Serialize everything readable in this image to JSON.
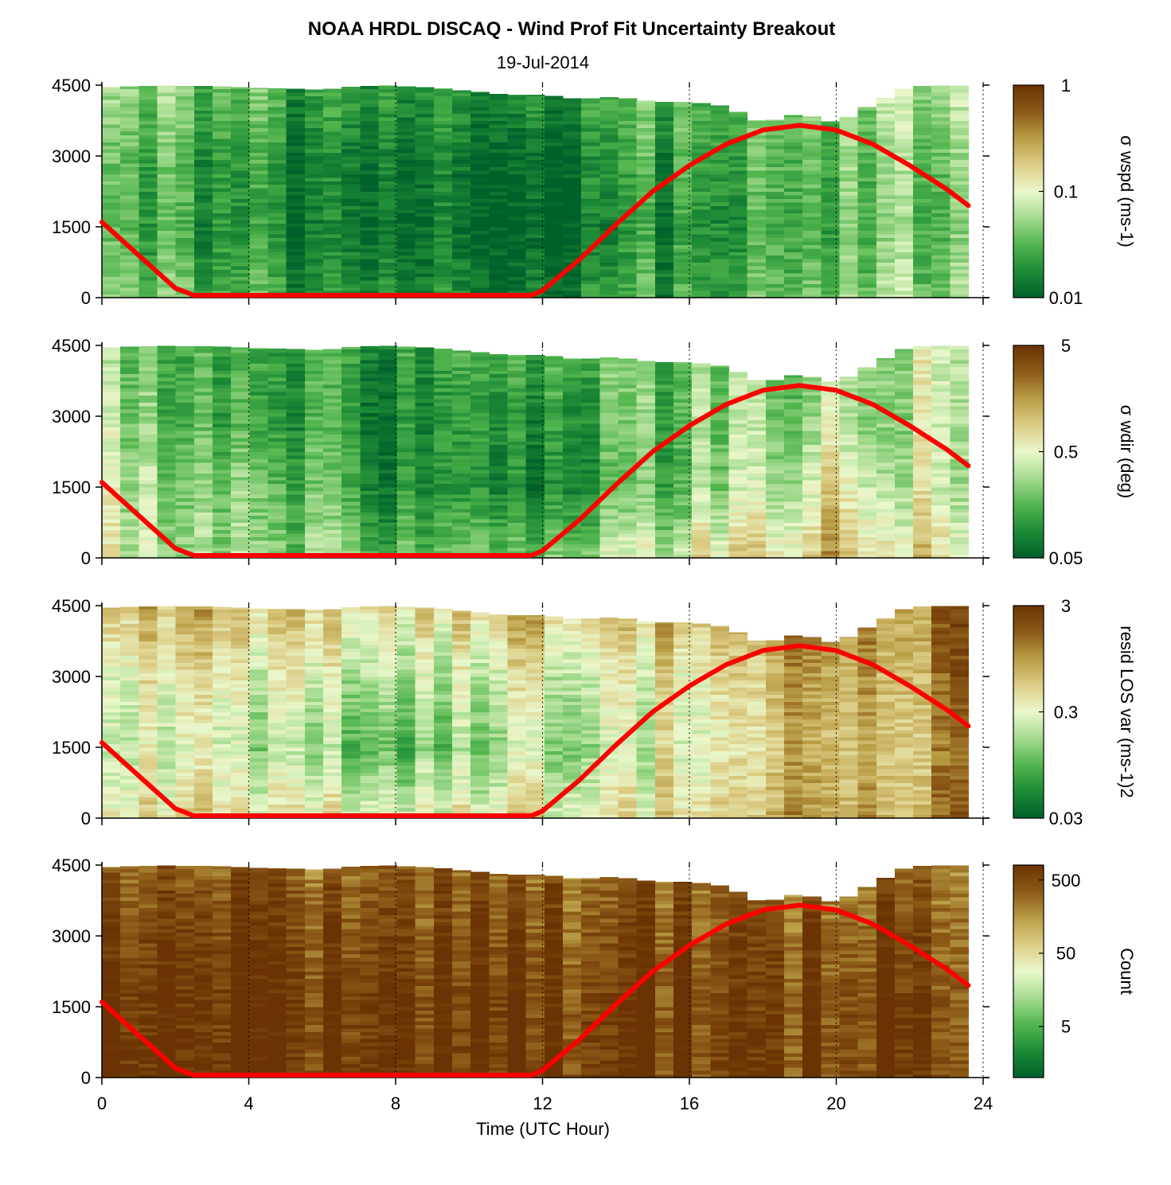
{
  "figure": {
    "title": "NOAA HRDL DISCAQ - Wind Prof Fit Uncertainty Breakout",
    "subtitle": "19-Jul-2014",
    "xlabel": "Time (UTC Hour)"
  },
  "colormap": [
    "#00602a",
    "#1c8a36",
    "#52b54e",
    "#a4db8f",
    "#eaf7cb",
    "#dccd86",
    "#b99d45",
    "#8c5a17",
    "#6b3303"
  ],
  "chart_data": [
    {
      "type": "heatmap",
      "panel": "wspd",
      "ylabel": "",
      "colorbar_label": "σ wspd (ms-1)",
      "colorbar_ticks": [
        "1",
        "0.1",
        "0.01"
      ],
      "colorbar_range": [
        0.01,
        1
      ],
      "colorbar_scale": "log",
      "xlim": [
        0,
        24
      ],
      "ylim": [
        0,
        4500
      ],
      "x_ticks": [
        "0",
        "4",
        "8",
        "12",
        "16",
        "20",
        "24"
      ],
      "y_ticks": [
        "0",
        "1500",
        "3000",
        "4500"
      ],
      "grid": "dotted vertical at 4, 8, 12, 16, 20, 24",
      "data_extent_hours": [
        0,
        23.6
      ],
      "top_profile": {
        "x": [
          0,
          1,
          2,
          3,
          4,
          5,
          6,
          7,
          8,
          9,
          10,
          11,
          12,
          13,
          14,
          15,
          16,
          17,
          18,
          19,
          20,
          21,
          22,
          23,
          23.6
        ],
        "height": [
          4450,
          4480,
          4490,
          4480,
          4450,
          4430,
          4400,
          4480,
          4490,
          4450,
          4380,
          4300,
          4300,
          4200,
          4260,
          4150,
          4150,
          4050,
          3700,
          3900,
          3700,
          4100,
          4480,
          4490,
          4500
        ]
      },
      "sun_elevation_curve": {
        "x": [
          0,
          1,
          2,
          2.5,
          3,
          4,
          5,
          6,
          7,
          8,
          9,
          10,
          11,
          11.7,
          12,
          13,
          14,
          15,
          16,
          17,
          18,
          19,
          20,
          21,
          22,
          23,
          23.6
        ],
        "height": [
          1600,
          900,
          200,
          50,
          50,
          50,
          50,
          50,
          50,
          50,
          50,
          50,
          50,
          50,
          150,
          800,
          1550,
          2250,
          2800,
          3250,
          3550,
          3650,
          3550,
          3250,
          2800,
          2300,
          1950
        ]
      },
      "intensity": {
        "x": [
          0,
          4,
          8,
          12,
          16,
          20,
          23.6
        ],
        "y": [
          0,
          1500,
          3000,
          4500
        ],
        "z": [
          [
            0.35,
            0.2,
            0.12,
            0.12,
            0.2,
            0.3,
            0.38
          ],
          [
            0.3,
            0.12,
            0.05,
            0.05,
            0.15,
            0.25,
            0.32
          ],
          [
            0.32,
            0.15,
            0.06,
            0.08,
            0.22,
            0.28,
            0.35
          ],
          [
            0.4,
            0.25,
            0.15,
            0.2,
            0.25,
            0.35,
            0.45
          ]
        ]
      }
    },
    {
      "type": "heatmap",
      "panel": "wdir",
      "ylabel": "",
      "colorbar_label": "σ wdir (deg)",
      "colorbar_ticks": [
        "5",
        "0.5",
        "0.05"
      ],
      "colorbar_range": [
        0.05,
        5
      ],
      "colorbar_scale": "log",
      "xlim": [
        0,
        24
      ],
      "ylim": [
        0,
        4500
      ],
      "x_ticks": [
        "0",
        "4",
        "8",
        "12",
        "16",
        "20",
        "24"
      ],
      "y_ticks": [
        "0",
        "1500",
        "3000",
        "4500"
      ],
      "grid": "dotted vertical at 4, 8, 12, 16, 20, 24",
      "data_extent_hours": [
        0,
        23.6
      ],
      "top_profile": {
        "x": [
          0,
          1,
          2,
          3,
          4,
          5,
          6,
          7,
          8,
          9,
          10,
          11,
          12,
          13,
          14,
          15,
          16,
          17,
          18,
          19,
          20,
          21,
          22,
          23,
          23.6
        ],
        "height": [
          4450,
          4480,
          4490,
          4480,
          4450,
          4430,
          4400,
          4480,
          4490,
          4450,
          4380,
          4300,
          4300,
          4200,
          4260,
          4150,
          4150,
          4050,
          3700,
          3900,
          3700,
          4100,
          4480,
          4490,
          4500
        ]
      },
      "sun_elevation_curve": {
        "x": [
          0,
          1,
          2,
          2.5,
          3,
          4,
          5,
          6,
          7,
          8,
          9,
          10,
          11,
          11.7,
          12,
          13,
          14,
          15,
          16,
          17,
          18,
          19,
          20,
          21,
          22,
          23,
          23.6
        ],
        "height": [
          1600,
          900,
          200,
          50,
          50,
          50,
          50,
          50,
          50,
          50,
          50,
          50,
          50,
          50,
          150,
          800,
          1550,
          2250,
          2800,
          3250,
          3550,
          3650,
          3550,
          3250,
          2800,
          2300,
          1950
        ]
      },
      "intensity": {
        "x": [
          0,
          4,
          8,
          12,
          16,
          20,
          23.6
        ],
        "y": [
          0,
          1500,
          3000,
          4500
        ],
        "z": [
          [
            0.5,
            0.35,
            0.25,
            0.3,
            0.5,
            0.7,
            0.55
          ],
          [
            0.45,
            0.3,
            0.12,
            0.1,
            0.3,
            0.55,
            0.4
          ],
          [
            0.4,
            0.18,
            0.1,
            0.15,
            0.3,
            0.4,
            0.45
          ],
          [
            0.35,
            0.2,
            0.15,
            0.25,
            0.3,
            0.4,
            0.45
          ]
        ]
      }
    },
    {
      "type": "heatmap",
      "panel": "resid",
      "ylabel": "",
      "colorbar_label": "resid LOS var (ms-1)2",
      "colorbar_ticks": [
        "3",
        "0.3",
        "0.03"
      ],
      "colorbar_range": [
        0.03,
        3
      ],
      "colorbar_scale": "log",
      "xlim": [
        0,
        24
      ],
      "ylim": [
        0,
        4500
      ],
      "x_ticks": [
        "0",
        "4",
        "8",
        "12",
        "16",
        "20",
        "24"
      ],
      "y_ticks": [
        "0",
        "1500",
        "3000",
        "4500"
      ],
      "grid": "dotted vertical at 4, 8, 12, 16, 20, 24",
      "data_extent_hours": [
        0,
        23.6
      ],
      "top_profile": {
        "x": [
          0,
          1,
          2,
          3,
          4,
          5,
          6,
          7,
          8,
          9,
          10,
          11,
          12,
          13,
          14,
          15,
          16,
          17,
          18,
          19,
          20,
          21,
          22,
          23,
          23.6
        ],
        "height": [
          4450,
          4480,
          4490,
          4480,
          4450,
          4430,
          4400,
          4480,
          4490,
          4450,
          4380,
          4300,
          4300,
          4200,
          4260,
          4150,
          4150,
          4050,
          3700,
          3900,
          3700,
          4100,
          4480,
          4490,
          4500
        ]
      },
      "sun_elevation_curve": {
        "x": [
          0,
          1,
          2,
          2.5,
          3,
          4,
          5,
          6,
          7,
          8,
          9,
          10,
          11,
          11.7,
          12,
          13,
          14,
          15,
          16,
          17,
          18,
          19,
          20,
          21,
          22,
          23,
          23.6
        ],
        "height": [
          1600,
          900,
          200,
          50,
          50,
          50,
          50,
          50,
          50,
          50,
          50,
          50,
          50,
          50,
          150,
          800,
          1550,
          2250,
          2800,
          3250,
          3550,
          3650,
          3550,
          3250,
          2800,
          2300,
          1950
        ]
      },
      "intensity": {
        "x": [
          0,
          4,
          8,
          12,
          16,
          20,
          23.6
        ],
        "y": [
          0,
          1500,
          3000,
          4500
        ],
        "z": [
          [
            0.65,
            0.55,
            0.55,
            0.55,
            0.6,
            0.75,
            0.8
          ],
          [
            0.55,
            0.4,
            0.3,
            0.4,
            0.5,
            0.7,
            0.75
          ],
          [
            0.6,
            0.5,
            0.45,
            0.5,
            0.55,
            0.75,
            0.8
          ],
          [
            0.75,
            0.65,
            0.6,
            0.7,
            0.7,
            0.8,
            0.85
          ]
        ]
      }
    },
    {
      "type": "heatmap",
      "panel": "count",
      "ylabel": "",
      "colorbar_label": "Count",
      "colorbar_ticks": [
        "500",
        "50",
        "5"
      ],
      "colorbar_range": [
        1,
        800
      ],
      "colorbar_scale": "log",
      "xlim": [
        0,
        24
      ],
      "ylim": [
        0,
        4500
      ],
      "x_ticks": [
        "0",
        "4",
        "8",
        "12",
        "16",
        "20",
        "24"
      ],
      "y_ticks": [
        "0",
        "1500",
        "3000",
        "4500"
      ],
      "grid": "dotted vertical at 4, 8, 12, 16, 20, 24",
      "data_extent_hours": [
        0,
        23.6
      ],
      "top_profile": {
        "x": [
          0,
          1,
          2,
          3,
          4,
          5,
          6,
          7,
          8,
          9,
          10,
          11,
          12,
          13,
          14,
          15,
          16,
          17,
          18,
          19,
          20,
          21,
          22,
          23,
          23.6
        ],
        "height": [
          4450,
          4480,
          4490,
          4480,
          4450,
          4430,
          4400,
          4480,
          4490,
          4450,
          4380,
          4300,
          4300,
          4200,
          4260,
          4150,
          4150,
          4050,
          3700,
          3900,
          3700,
          4100,
          4480,
          4490,
          4500
        ]
      },
      "sun_elevation_curve": {
        "x": [
          0,
          1,
          2,
          2.5,
          3,
          4,
          5,
          6,
          7,
          8,
          9,
          10,
          11,
          11.7,
          12,
          13,
          14,
          15,
          16,
          17,
          18,
          19,
          20,
          21,
          22,
          23,
          23.6
        ],
        "height": [
          1600,
          900,
          200,
          50,
          50,
          50,
          50,
          50,
          50,
          50,
          50,
          50,
          50,
          50,
          150,
          800,
          1550,
          2250,
          2800,
          3250,
          3550,
          3650,
          3550,
          3250,
          2800,
          2300,
          1950
        ]
      },
      "intensity": {
        "x": [
          0,
          4,
          8,
          12,
          16,
          20,
          23.6
        ],
        "y": [
          0,
          1500,
          3000,
          4500
        ],
        "z": [
          [
            0.97,
            0.97,
            0.97,
            0.97,
            0.97,
            0.97,
            0.97
          ],
          [
            0.96,
            0.96,
            0.96,
            0.96,
            0.96,
            0.96,
            0.96
          ],
          [
            0.92,
            0.92,
            0.92,
            0.92,
            0.92,
            0.92,
            0.92
          ],
          [
            0.82,
            0.85,
            0.85,
            0.85,
            0.85,
            0.85,
            0.85
          ]
        ]
      }
    }
  ]
}
